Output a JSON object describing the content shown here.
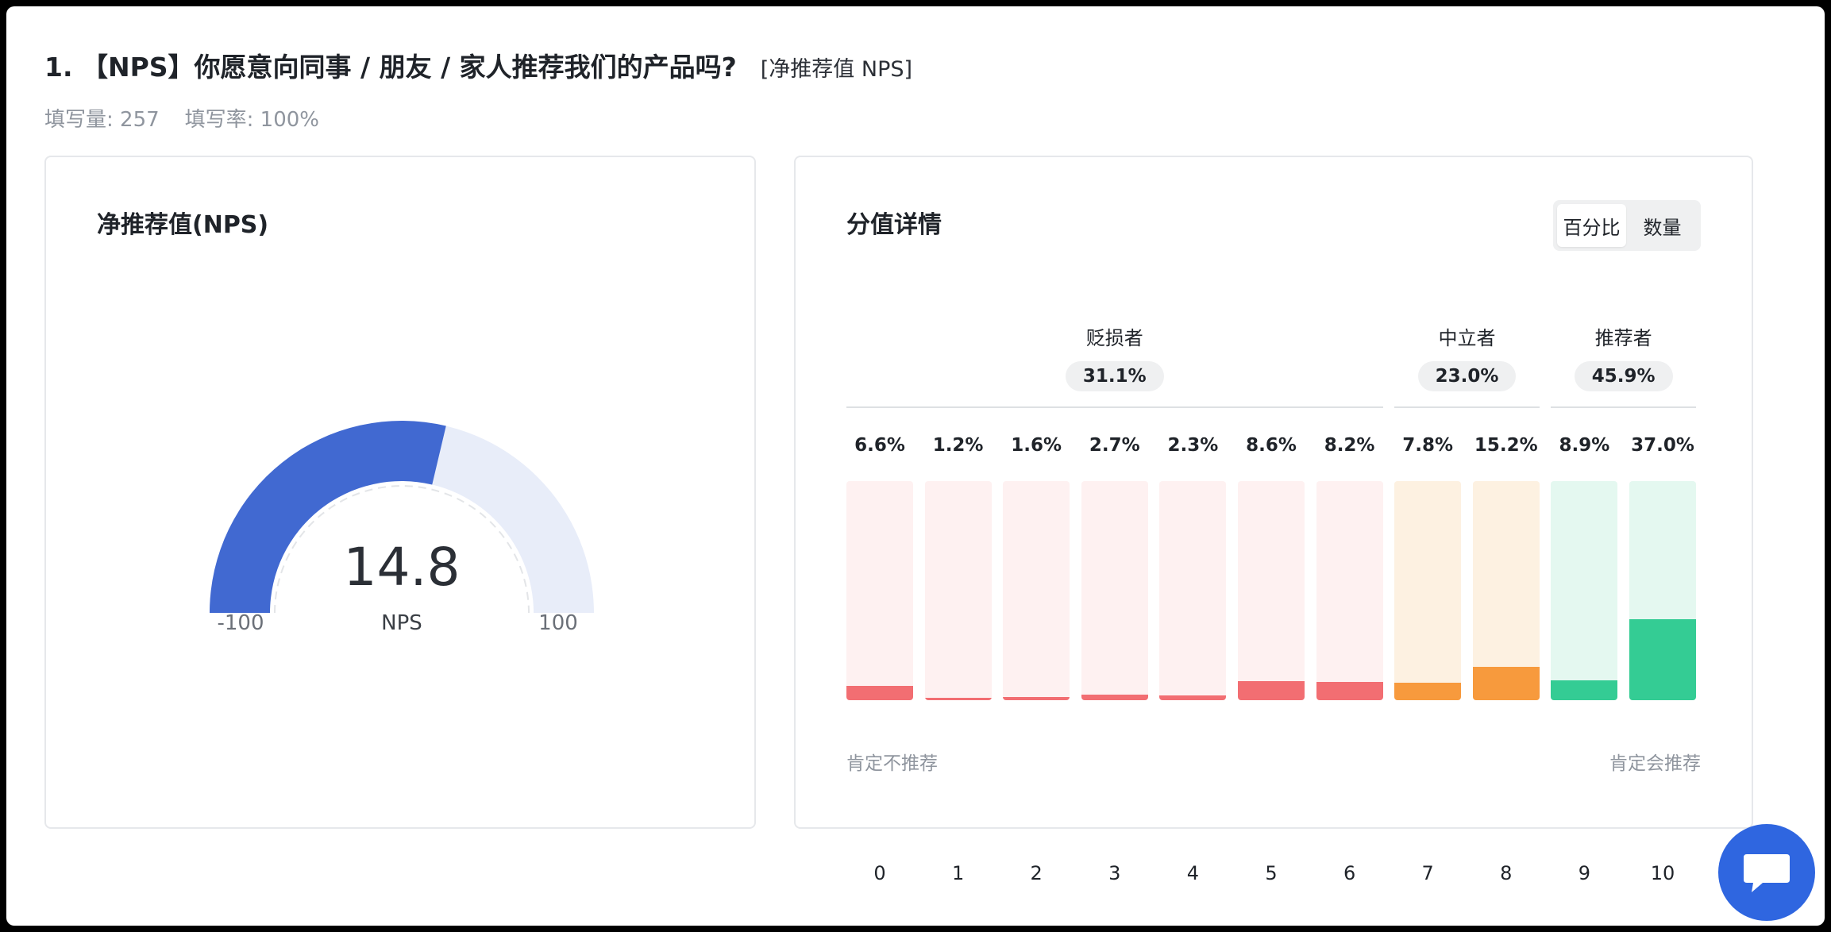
{
  "question": {
    "title": "1. 【NPS】你愿意向同事 / 朋友 / 家人推荐我们的产品吗?",
    "type_tag": "[净推荐值 NPS]",
    "fill_count": "填写量: 257",
    "fill_rate": "填写率: 100%"
  },
  "nps_card": {
    "title": "净推荐值(NPS)",
    "value": "14.8",
    "unit": "NPS",
    "min_label": "-100",
    "max_label": "100",
    "colors": {
      "fill": "#4169d1",
      "track": "#e8edf9"
    }
  },
  "detail_card": {
    "title": "分值详情",
    "toggle": {
      "options": [
        "百分比",
        "数量"
      ],
      "active": "百分比"
    },
    "axis_left": "肯定不推荐",
    "axis_right": "肯定会推荐"
  },
  "chart_data": {
    "type": "bar",
    "categories": [
      "0",
      "1",
      "2",
      "3",
      "4",
      "5",
      "6",
      "7",
      "8",
      "9",
      "10"
    ],
    "values": [
      6.6,
      1.2,
      1.6,
      2.7,
      2.3,
      8.6,
      8.2,
      7.8,
      15.2,
      8.9,
      37.0
    ],
    "value_labels": [
      "6.6%",
      "1.2%",
      "1.6%",
      "2.7%",
      "2.3%",
      "8.6%",
      "8.2%",
      "7.8%",
      "15.2%",
      "8.9%",
      "37.0%"
    ],
    "ylim": [
      0,
      100
    ],
    "groups": [
      {
        "name": "贬损者",
        "share": "31.1%",
        "from": 0,
        "to": 6,
        "color": "#f26e72",
        "track": "#fef1f1"
      },
      {
        "name": "中立者",
        "share": "23.0%",
        "from": 7,
        "to": 8,
        "color": "#f79a3d",
        "track": "#fdf1e1"
      },
      {
        "name": "推荐者",
        "share": "45.9%",
        "from": 9,
        "to": 10,
        "color": "#34cc94",
        "track": "#e4f8f0"
      }
    ],
    "nps": 14.8,
    "nps_range": [
      -100,
      100
    ]
  }
}
